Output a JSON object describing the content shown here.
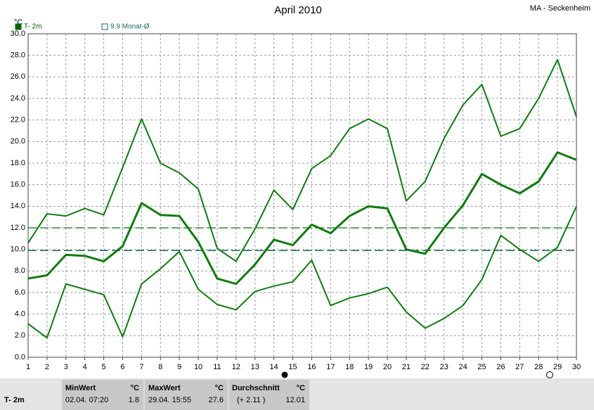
{
  "chart_data": {
    "type": "line",
    "title": "April 2010",
    "location": "MA - Seckenheim",
    "y_unit": "°C",
    "legend": [
      {
        "label": "T- 2m",
        "color": "#006400"
      },
      {
        "label": "9.9 Monat-Ø",
        "color": "#1a6b5a"
      }
    ],
    "x": [
      1,
      2,
      3,
      4,
      5,
      6,
      7,
      8,
      9,
      10,
      11,
      12,
      13,
      14,
      15,
      16,
      17,
      18,
      19,
      20,
      21,
      22,
      23,
      24,
      25,
      26,
      27,
      28,
      29,
      30
    ],
    "xlim": [
      1,
      30
    ],
    "series": [
      {
        "color": "#117a11",
        "width": 2,
        "values": [
          10.6,
          13.3,
          13.1,
          13.8,
          13.2,
          17.6,
          22.1,
          18.0,
          17.1,
          15.6,
          10.1,
          8.9,
          11.9,
          15.5,
          13.7,
          17.5,
          18.7,
          21.2,
          22.1,
          21.2,
          14.5,
          16.3,
          20.3,
          23.4,
          25.3,
          20.5,
          21.2,
          24.0,
          27.6,
          22.3
        ]
      },
      {
        "color": "#117a11",
        "width": 3,
        "values": [
          7.3,
          7.6,
          9.5,
          9.4,
          8.9,
          10.3,
          14.3,
          13.2,
          13.1,
          10.7,
          7.3,
          6.8,
          8.6,
          10.9,
          10.4,
          12.3,
          11.5,
          13.1,
          14.0,
          13.8,
          10.0,
          9.6,
          12.0,
          14.1,
          17.0,
          16.0,
          15.2,
          16.3,
          19.0,
          18.3
        ]
      },
      {
        "color": "#117a11",
        "width": 2,
        "values": [
          3.1,
          1.8,
          6.8,
          6.3,
          5.8,
          1.9,
          6.8,
          8.2,
          9.8,
          6.3,
          4.9,
          4.4,
          6.1,
          6.6,
          7.0,
          9.0,
          4.8,
          5.5,
          5.9,
          6.5,
          4.2,
          2.7,
          3.6,
          4.8,
          7.2,
          11.3,
          10.0,
          8.9,
          10.2,
          14.0
        ]
      }
    ],
    "hlines": [
      {
        "value": 12,
        "color": "#2e8b2e"
      },
      {
        "value": 9.9,
        "color": "#1a6b5a"
      }
    ],
    "ylim": [
      0,
      30
    ],
    "yticks": [
      {
        "value": 0,
        "label": "0.0"
      },
      {
        "value": 2,
        "label": "2.0"
      },
      {
        "value": 4,
        "label": "4.0"
      },
      {
        "value": 6,
        "label": "6.0"
      },
      {
        "value": 8,
        "label": "8.0"
      },
      {
        "value": 10,
        "label": "10.0"
      },
      {
        "value": 12,
        "label": "12.0"
      },
      {
        "value": 14,
        "label": "14.0"
      },
      {
        "value": 16,
        "label": "16.0"
      },
      {
        "value": 18,
        "label": "18.0"
      },
      {
        "value": 20,
        "label": "20.0"
      },
      {
        "value": 22,
        "label": "22.0"
      },
      {
        "value": 24,
        "label": "24.0"
      },
      {
        "value": 26,
        "label": "26.0"
      },
      {
        "value": 28,
        "label": "28.0"
      },
      {
        "value": 30,
        "label": "30.0"
      }
    ],
    "grid": true
  },
  "stats": {
    "headers": [
      "MinWert",
      "°C",
      "MaxWert",
      "°C",
      "Durchschnitt",
      "°C"
    ],
    "row": [
      "T- 2m",
      "02.04.  07:20",
      "1.8",
      "29.04.  15:55",
      "27.6",
      "(+ 2.11 )",
      "12.01"
    ]
  }
}
